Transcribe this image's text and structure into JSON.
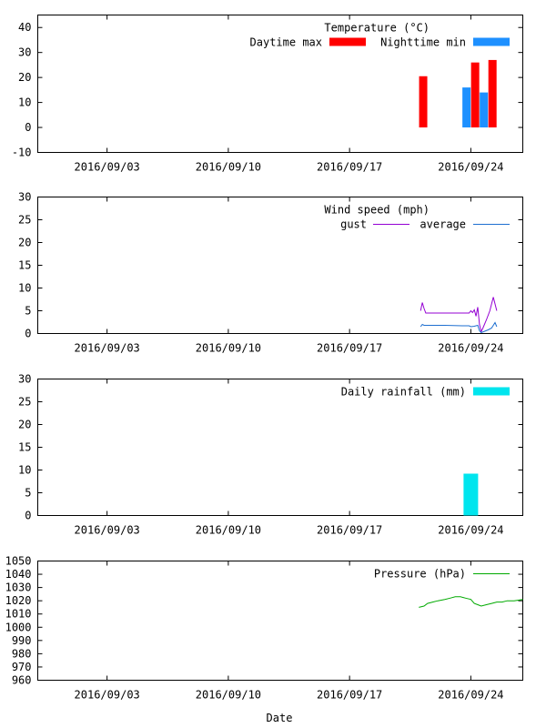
{
  "xlabel": "Date",
  "x_tick_labels": [
    "2016/09/03",
    "2016/09/10",
    "2016/09/17",
    "2016/09/24"
  ],
  "x_tick_days": [
    2.5,
    9.5,
    16.5,
    23.5
  ],
  "x_range_days": [
    -1.5,
    26.5
  ],
  "chart_data": [
    {
      "type": "bar",
      "title": "Temperature (°C)",
      "ylim": [
        -10,
        45
      ],
      "yticks": [
        -10,
        0,
        10,
        20,
        30,
        40
      ],
      "ytick_labels": [
        "-10",
        "0",
        "10",
        "20",
        "30",
        "40"
      ],
      "grid": false,
      "legend_placement": "top-right",
      "series": [
        {
          "name": "Daytime max",
          "color": "#ff0000",
          "points": [
            {
              "day": 20.75,
              "value": 20.5
            },
            {
              "day": 23.75,
              "value": 26.0
            },
            {
              "day": 24.75,
              "value": 27.0
            }
          ]
        },
        {
          "name": "Nighttime min",
          "color": "#1e90ff",
          "points": [
            {
              "day": 23.25,
              "value": 16.0
            },
            {
              "day": 24.25,
              "value": 14.0
            }
          ]
        }
      ]
    },
    {
      "type": "line",
      "title": "Wind speed (mph)",
      "ylim": [
        0,
        30
      ],
      "yticks": [
        0,
        5,
        10,
        15,
        20,
        25,
        30
      ],
      "ytick_labels": [
        "0",
        "5",
        "10",
        "15",
        "20",
        "25",
        "30"
      ],
      "grid": false,
      "legend_placement": "top-right",
      "series": [
        {
          "name": "gust",
          "color": "#9400d3",
          "x": [
            20.6,
            20.7,
            20.8,
            20.9,
            22.0,
            23.0,
            23.2,
            23.4,
            23.5,
            23.6,
            23.7,
            23.8,
            23.9,
            24.0,
            24.1,
            24.2,
            24.4,
            24.6,
            24.8,
            24.9,
            25.0
          ],
          "y": [
            5.0,
            6.8,
            5.5,
            4.5,
            4.5,
            4.5,
            4.5,
            4.5,
            5.0,
            4.6,
            5.2,
            3.8,
            5.8,
            2.0,
            0.4,
            1.2,
            3.0,
            5.0,
            8.0,
            6.5,
            5.0
          ]
        },
        {
          "name": "average",
          "color": "#1e6fd0",
          "x": [
            20.6,
            20.7,
            20.8,
            22.0,
            23.0,
            23.4,
            23.5,
            23.7,
            23.9,
            24.0,
            24.1,
            24.3,
            24.5,
            24.7,
            24.9,
            25.0
          ],
          "y": [
            1.5,
            2.0,
            1.8,
            1.8,
            1.7,
            1.7,
            1.5,
            1.6,
            1.8,
            0.6,
            0.2,
            0.5,
            0.8,
            1.2,
            2.4,
            1.5
          ]
        }
      ]
    },
    {
      "type": "bar",
      "title": "Daily rainfall (mm)",
      "ylim": [
        0,
        30
      ],
      "yticks": [
        0,
        5,
        10,
        15,
        20,
        25,
        30
      ],
      "ytick_labels": [
        "0",
        "5",
        "10",
        "15",
        "20",
        "25",
        "30"
      ],
      "grid": false,
      "legend_placement": "top-right",
      "series": [
        {
          "name": "Daily rainfall (mm)",
          "color": "#00e5ee",
          "points": [
            {
              "day": 23.5,
              "value": 9.2
            }
          ]
        }
      ]
    },
    {
      "type": "line",
      "title": "Pressure (hPa)",
      "ylim": [
        960,
        1050
      ],
      "yticks": [
        960,
        970,
        980,
        990,
        1000,
        1010,
        1020,
        1030,
        1040,
        1050
      ],
      "ytick_labels": [
        "960",
        "970",
        "980",
        "990",
        "1000",
        "1010",
        "1020",
        "1030",
        "1040",
        "1050"
      ],
      "grid": false,
      "legend_placement": "top-right",
      "series": [
        {
          "name": "Pressure (hPa)",
          "color": "#00aa00",
          "x": [
            20.5,
            20.8,
            21.0,
            21.3,
            21.6,
            22.0,
            22.3,
            22.6,
            22.9,
            23.2,
            23.5,
            23.7,
            23.9,
            24.1,
            24.4,
            24.7,
            25.0,
            25.3,
            25.6,
            26.0,
            26.5
          ],
          "y": [
            1015,
            1016,
            1018,
            1019,
            1020,
            1021,
            1022,
            1023,
            1023,
            1022,
            1021,
            1018,
            1017,
            1016,
            1017,
            1018,
            1019,
            1019,
            1020,
            1020,
            1021
          ]
        }
      ]
    }
  ]
}
